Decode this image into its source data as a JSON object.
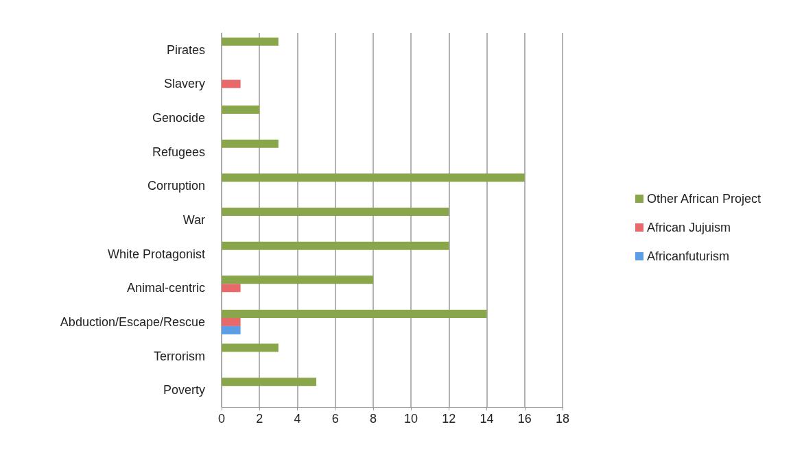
{
  "chart_data": {
    "type": "bar",
    "orientation": "horizontal",
    "categories": [
      "Pirates",
      "Slavery",
      "Genocide",
      "Refugees",
      "Corruption",
      "War",
      "White Protagonist",
      "Animal-centric",
      "Abduction/Escape/Rescue",
      "Terrorism",
      "Poverty"
    ],
    "series": [
      {
        "name": "Other African Project",
        "color": "#8aa64a",
        "values": [
          3,
          0,
          2,
          3,
          16,
          12,
          12,
          8,
          14,
          3,
          5
        ]
      },
      {
        "name": "African Jujuism",
        "color": "#e8696a",
        "values": [
          0,
          1,
          0,
          0,
          0,
          0,
          0,
          1,
          1,
          0,
          0
        ]
      },
      {
        "name": "Africanfuturism",
        "color": "#5b9ee6",
        "values": [
          0,
          0,
          0,
          0,
          0,
          0,
          0,
          0,
          1,
          0,
          0
        ]
      }
    ],
    "xlim": [
      0,
      18
    ],
    "xticks": [
      0,
      2,
      4,
      6,
      8,
      10,
      12,
      14,
      16,
      18
    ],
    "grid": "x",
    "legend": "right"
  }
}
